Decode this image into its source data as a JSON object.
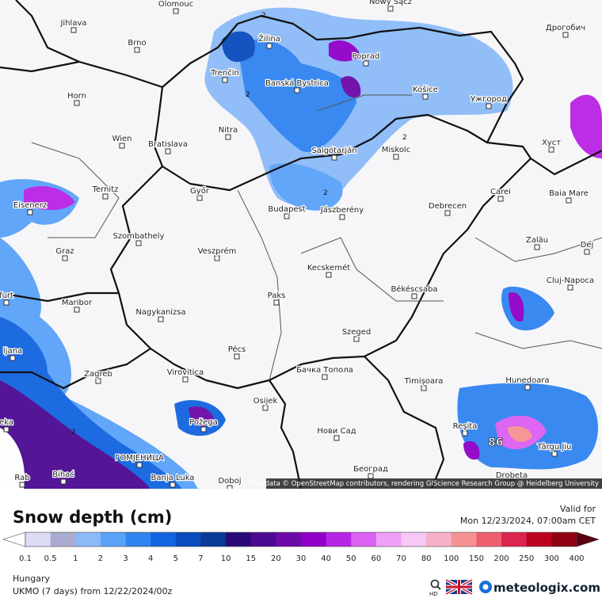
{
  "map": {
    "cities": [
      "Olomouc",
      "Jihlava",
      "Brno",
      "Žilina",
      "Nowy Sącz",
      "Дрогобич",
      "Poprad",
      "Trenčín",
      "Banská Bystrica",
      "Horn",
      "Košice",
      "Ужгород",
      "Nitra",
      "Wien",
      "Bratislava",
      "Salgótarján",
      "Miskolc",
      "Хуст",
      "Ternitz",
      "Győr",
      "Eisenerz",
      "Carei",
      "Baia Mare",
      "Budapest",
      "Jászberény",
      "Debrecen",
      "Szombathely",
      "Zalău",
      "Graz",
      "Veszprém",
      "Dej",
      "Kecskemét",
      "Cluj-Napoca",
      "Maribor",
      "Paks",
      "Békéscsaba",
      "Nagykanizsa",
      "Pécs",
      "Szeged",
      "ljana",
      "Zagreb",
      "Virovitica",
      "Бачка Топола",
      "Timișoara",
      "Hunedoara",
      "Osijek",
      "Požega",
      "Reşita",
      "Нови Сад",
      "Târgu Jiu",
      "Bihać",
      "ГОМЈЕНИЦА",
      "Banja Luka",
      "Doboj",
      "Београд",
      "Drobeta",
      "Rab",
      "furt",
      "eka"
    ],
    "contour_labels": [
      "2",
      "2",
      "2",
      "2",
      "2"
    ],
    "max_label": "86",
    "attribution": "Map data © OpenStreetMap contributors, rendering GIScience Research Group @ Heidelberg University"
  },
  "legend": {
    "title": "Snow depth (cm)",
    "valid_label": "Valid for",
    "valid_time": "Mon 12/23/2024, 07:00am CET",
    "ticks": [
      0.1,
      0.5,
      1,
      2,
      3,
      4,
      5,
      7,
      10,
      15,
      20,
      30,
      40,
      50,
      60,
      70,
      80,
      100,
      150,
      200,
      250,
      300,
      400
    ],
    "below_color": "#ffffff",
    "above_color": "#5a0010",
    "colors": [
      "#dcdcf6",
      "#ababd2",
      "#8cbaf8",
      "#5aa2f8",
      "#2f84f0",
      "#1264e0",
      "#0a4cbe",
      "#083a98",
      "#2a0a78",
      "#4c0a92",
      "#6c0aa8",
      "#9000c8",
      "#b824e6",
      "#dc60f2",
      "#eea0f8",
      "#f6c8f4",
      "#f6b0c8",
      "#f69292",
      "#ee6070",
      "#dc2450",
      "#bc0020",
      "#8e0012"
    ]
  },
  "footer": {
    "region": "Hungary",
    "model": "UKMO (7 days) from 12/22/2024/00z"
  },
  "brand": {
    "name": "meteologix.com",
    "hd": "HD"
  }
}
